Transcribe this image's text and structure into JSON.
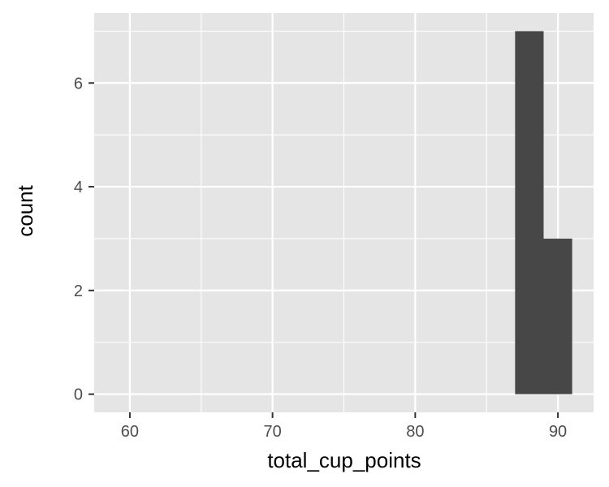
{
  "chart_data": {
    "type": "bar",
    "xlabel": "total_cup_points",
    "ylabel": "count",
    "xlim": [
      57.5,
      92.5
    ],
    "ylim": [
      -0.35,
      7.35
    ],
    "x_ticks": [
      60,
      70,
      80,
      90
    ],
    "y_ticks": [
      0,
      2,
      4,
      6
    ],
    "grid": true,
    "bins": [
      {
        "x0": 87,
        "x1": 89,
        "count": 7
      },
      {
        "x0": 89,
        "x1": 91,
        "count": 3
      }
    ],
    "colors": {
      "panel": "#e5e5e5",
      "grid": "#ffffff",
      "bar": "#474747",
      "tick_text": "#4d4d4d",
      "title_text": "#000000"
    }
  }
}
